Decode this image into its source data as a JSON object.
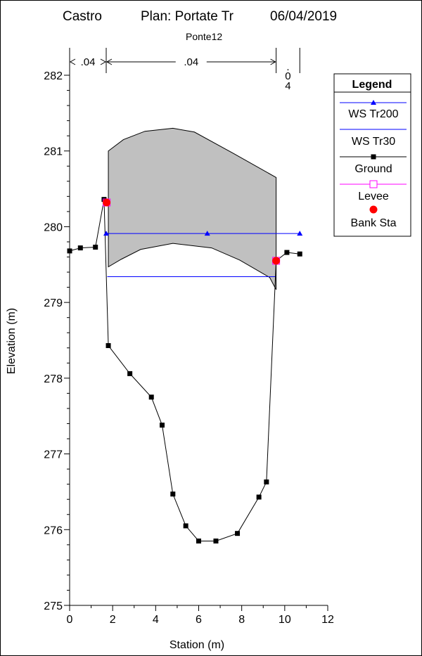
{
  "chart_data": {
    "type": "line",
    "title": {
      "project": "Castro",
      "plan": "Plan: Portate Tr",
      "date": "06/04/2019"
    },
    "subtitle": "Ponte12",
    "xlabel": "Station (m)",
    "ylabel": "Elevation (m)",
    "xlim": [
      0,
      12
    ],
    "ylim": [
      275,
      282.5
    ],
    "xticks": [
      "0",
      "2",
      "4",
      "6",
      "8",
      "10",
      "12"
    ],
    "yticks": [
      "275",
      "276",
      "277",
      "278",
      "279",
      "280",
      "281",
      "282"
    ],
    "mannings": [
      {
        "label": ".04",
        "from": 0,
        "to": 1.7
      },
      {
        "label": ".04",
        "from": 1.7,
        "to": 9.6
      },
      {
        "label": "0.04",
        "from": 9.6,
        "to": 10.7
      }
    ],
    "legend": {
      "title": "Legend",
      "entries": [
        "WS Tr200",
        "WS Tr30",
        "Ground",
        "Levee",
        "Bank Sta"
      ]
    },
    "colors": {
      "ws_tr200": "#0000ff",
      "ws_tr30": "#0000ff",
      "ground": "#000000",
      "levee": "#ff00ff",
      "bank_sta": "#ff0000",
      "deck": "#c0c0c0"
    },
    "series": [
      {
        "name": "WS Tr200",
        "x": [
          1.7,
          6.4,
          10.7
        ],
        "y": [
          279.91,
          279.91,
          279.91
        ]
      },
      {
        "name": "WS Tr30",
        "x": [
          1.75,
          9.6
        ],
        "y": [
          279.34,
          279.34
        ]
      },
      {
        "name": "Ground",
        "x": [
          0,
          0.5,
          1.2,
          1.6,
          1.8,
          2.8,
          3.8,
          4.3,
          4.8,
          5.4,
          6.0,
          6.8,
          7.8,
          8.8,
          9.15,
          9.6,
          10.1,
          10.7
        ],
        "y": [
          279.68,
          279.72,
          279.73,
          280.36,
          278.43,
          278.06,
          277.75,
          277.38,
          276.47,
          276.05,
          275.85,
          275.85,
          275.95,
          276.43,
          276.63,
          279.55,
          279.66,
          279.64
        ]
      },
      {
        "name": "Levee",
        "x": [
          1.72,
          9.6
        ],
        "y": [
          280.32,
          279.55
        ]
      },
      {
        "name": "Bank Sta",
        "x": [
          1.72,
          9.6
        ],
        "y": [
          280.32,
          279.55
        ]
      }
    ],
    "deck": {
      "top": {
        "x": [
          1.8,
          2.5,
          3.5,
          4.8,
          5.8,
          7.6,
          9.6
        ],
        "y": [
          281.0,
          281.15,
          281.26,
          281.3,
          281.25,
          280.97,
          280.65
        ]
      },
      "bottom": {
        "x": [
          9.6,
          9.3,
          7.9,
          6.6,
          4.8,
          3.3,
          2.4,
          1.8
        ],
        "y": [
          279.17,
          279.33,
          279.56,
          279.72,
          279.78,
          279.7,
          279.57,
          279.47
        ]
      }
    }
  }
}
